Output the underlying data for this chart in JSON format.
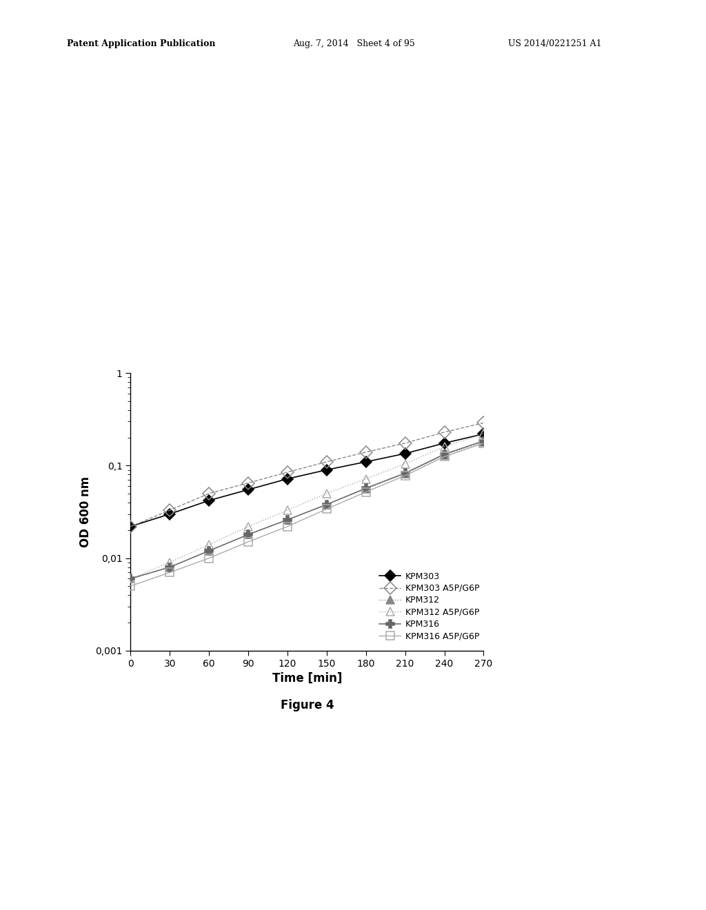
{
  "title": "",
  "xlabel": "Time [min]",
  "ylabel": "OD 600 nm",
  "figure_caption": "Figure 4",
  "x": [
    0,
    30,
    60,
    90,
    120,
    150,
    180,
    210,
    240,
    270
  ],
  "series": [
    {
      "name": "KPM303",
      "y": [
        0.022,
        0.03,
        0.042,
        0.055,
        0.072,
        0.09,
        0.11,
        0.135,
        0.175,
        0.22
      ],
      "color": "#000000",
      "linestyle": "-",
      "marker": "D",
      "fillstyle": "full",
      "markersize": 8,
      "linewidth": 1.2
    },
    {
      "name": "KPM303 A5P/G6P",
      "y": [
        0.022,
        0.033,
        0.05,
        0.065,
        0.085,
        0.11,
        0.14,
        0.175,
        0.23,
        0.29
      ],
      "color": "#888888",
      "linestyle": "--",
      "marker": "D",
      "fillstyle": "none",
      "markersize": 9,
      "linewidth": 1.0
    },
    {
      "name": "KPM312",
      "y": [
        0.006,
        0.008,
        0.012,
        0.018,
        0.026,
        0.038,
        0.056,
        0.082,
        0.13,
        0.18
      ],
      "color": "#888888",
      "linestyle": ":",
      "marker": "^",
      "fillstyle": "full",
      "markersize": 8,
      "linewidth": 1.0
    },
    {
      "name": "KPM312 A5P/G6P",
      "y": [
        0.006,
        0.009,
        0.014,
        0.022,
        0.033,
        0.05,
        0.072,
        0.105,
        0.16,
        0.22
      ],
      "color": "#aaaaaa",
      "linestyle": ":",
      "marker": "^",
      "fillstyle": "none",
      "markersize": 9,
      "linewidth": 1.0
    },
    {
      "name": "KPM316",
      "y": [
        0.006,
        0.008,
        0.012,
        0.018,
        0.026,
        0.038,
        0.057,
        0.083,
        0.133,
        0.185
      ],
      "color": "#666666",
      "linestyle": "-",
      "marker": "s",
      "fillstyle": "full",
      "markersize": 8,
      "linewidth": 1.1
    },
    {
      "name": "KPM316 A5P/G6P",
      "y": [
        0.005,
        0.007,
        0.01,
        0.015,
        0.022,
        0.034,
        0.052,
        0.078,
        0.125,
        0.175
      ],
      "color": "#aaaaaa",
      "linestyle": "-",
      "marker": "s",
      "fillstyle": "none",
      "markersize": 9,
      "linewidth": 1.0
    }
  ],
  "ylim": [
    0.001,
    1.0
  ],
  "xlim": [
    0,
    270
  ],
  "xticks": [
    0,
    30,
    60,
    90,
    120,
    150,
    180,
    210,
    240,
    270
  ],
  "yticks_major": [
    0.001,
    0.01,
    0.1,
    1
  ],
  "ytick_labels": [
    "0,001",
    "0,01",
    "0,1",
    "1"
  ],
  "background_color": "#ffffff",
  "fontsize_axis_label": 12,
  "fontsize_tick": 10,
  "fontsize_caption": 12,
  "header_left": "Patent Application Publication",
  "header_mid": "Aug. 7, 2014   Sheet 4 of 95",
  "header_right": "US 2014/0221251 A1"
}
